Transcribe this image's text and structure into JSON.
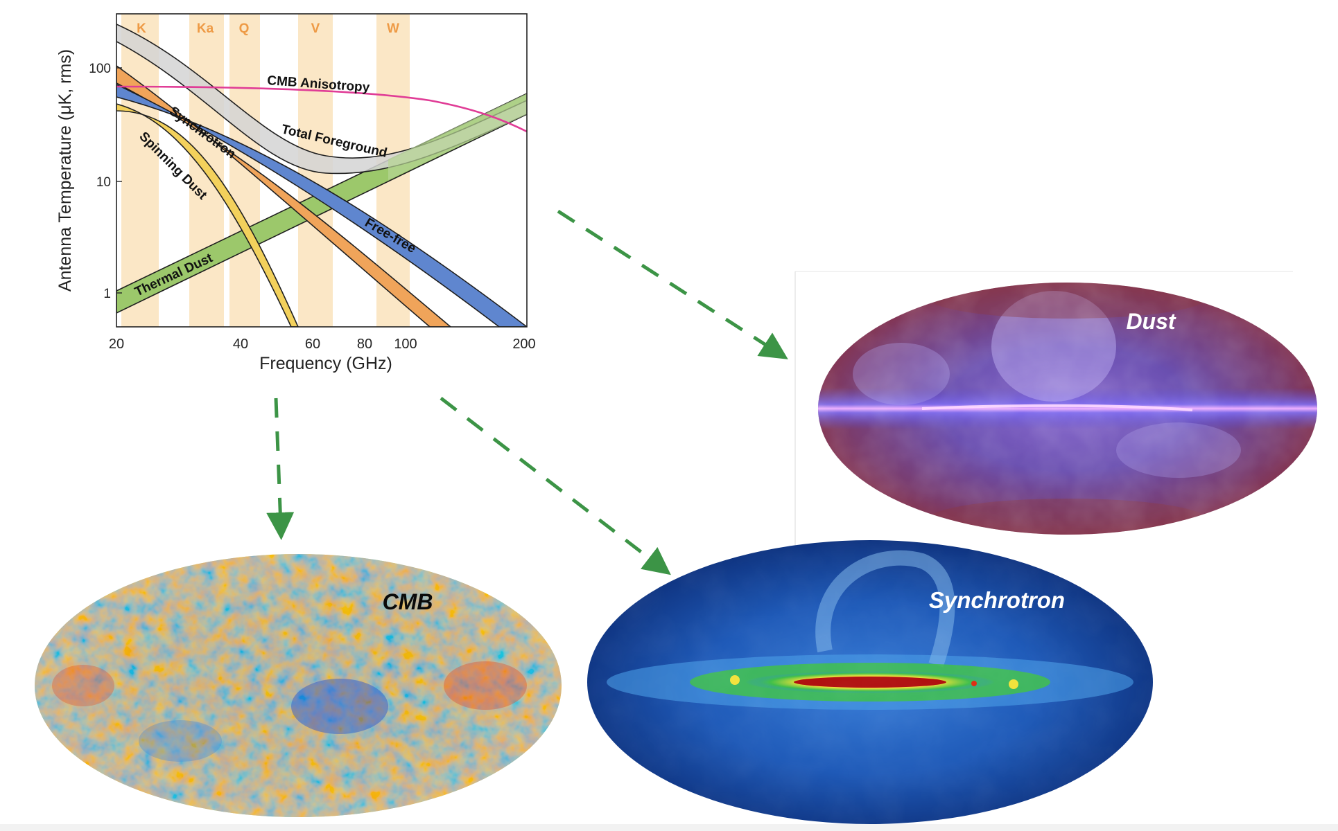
{
  "chart": {
    "ylabel": "Antenna Temperature (μK, rms)",
    "xlabel": "Frequency (GHz)",
    "x_ticks": [
      "20",
      "40",
      "60",
      "80",
      "100",
      "200"
    ],
    "y_ticks": [
      "100",
      "10",
      "1"
    ],
    "bands": [
      "K",
      "Ka",
      "Q",
      "V",
      "W"
    ],
    "curve_labels": {
      "cmb": "CMB Anisotropy",
      "total": "Total Foreground",
      "synchrotron": "Synchrotron",
      "spinning": "Spinning Dust",
      "freefree": "Free-free",
      "thermal": "Thermal Dust"
    }
  },
  "maps": {
    "dust": "Dust",
    "cmb": "CMB",
    "synchrotron": "Synchrotron"
  },
  "colors": {
    "band": "#fbe7c6",
    "band_text": "#ee9a45",
    "cmb_curve": "#e03c96",
    "arrow": "#3c9446"
  }
}
